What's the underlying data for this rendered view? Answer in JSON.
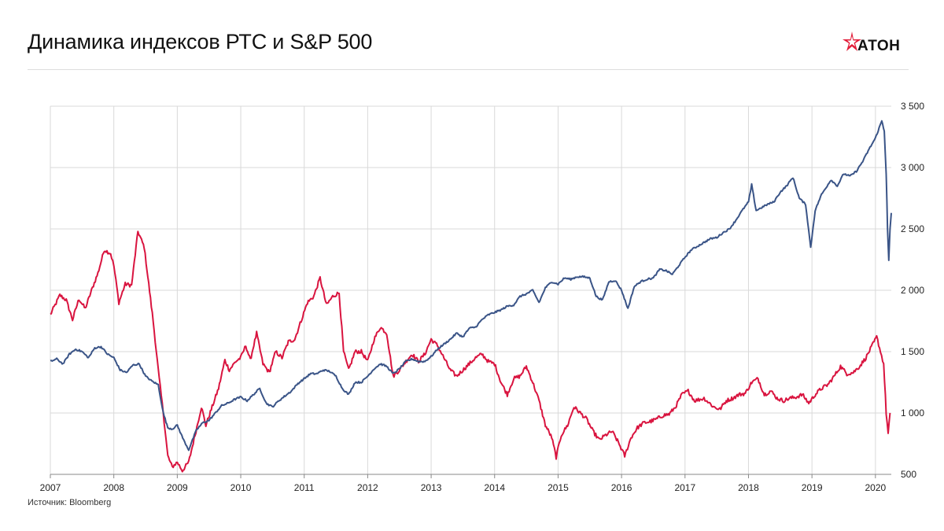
{
  "title": "Динамика индексов РТС и S&P 500",
  "logo": {
    "text": "АТОН",
    "accent": "#e21e3a"
  },
  "source": "Источник: Bloomberg",
  "colors": {
    "rts": "#d9143f",
    "sp500": "#3a5487",
    "grid": "#d9d9d9",
    "axis": "#888888"
  },
  "chart_data": {
    "type": "line",
    "title": "Динамика индексов РТС и S&P 500",
    "xlabel": "",
    "ylabel": "",
    "xlim": [
      2007.0,
      2020.25
    ],
    "ylim": [
      500,
      3500
    ],
    "x_ticks": [
      "2007",
      "2008",
      "2009",
      "2010",
      "2011",
      "2012",
      "2013",
      "2014",
      "2015",
      "2016",
      "2017",
      "2018",
      "2019",
      "2020"
    ],
    "x_tick_values": [
      2007,
      2008,
      2009,
      2010,
      2011,
      2012,
      2013,
      2014,
      2015,
      2016,
      2017,
      2018,
      2019,
      2020
    ],
    "y_ticks": [
      "500",
      "1 000",
      "1 500",
      "2 000",
      "2 500",
      "3 000",
      "3 500"
    ],
    "y_tick_values": [
      500,
      1000,
      1500,
      2000,
      2500,
      3000,
      3500
    ],
    "y_axis_position": "right",
    "grid": true,
    "series": [
      {
        "name": "РТС",
        "color": "#d9143f",
        "points": [
          [
            2007.0,
            1800
          ],
          [
            2007.15,
            1960
          ],
          [
            2007.25,
            1920
          ],
          [
            2007.35,
            1760
          ],
          [
            2007.45,
            1930
          ],
          [
            2007.55,
            1850
          ],
          [
            2007.65,
            2000
          ],
          [
            2007.75,
            2140
          ],
          [
            2007.85,
            2330
          ],
          [
            2007.95,
            2300
          ],
          [
            2008.0,
            2200
          ],
          [
            2008.08,
            1900
          ],
          [
            2008.18,
            2050
          ],
          [
            2008.28,
            2040
          ],
          [
            2008.38,
            2480
          ],
          [
            2008.48,
            2350
          ],
          [
            2008.55,
            2050
          ],
          [
            2008.62,
            1750
          ],
          [
            2008.7,
            1350
          ],
          [
            2008.78,
            1000
          ],
          [
            2008.85,
            650
          ],
          [
            2008.92,
            560
          ],
          [
            2009.0,
            600
          ],
          [
            2009.08,
            530
          ],
          [
            2009.18,
            600
          ],
          [
            2009.28,
            820
          ],
          [
            2009.38,
            1050
          ],
          [
            2009.45,
            900
          ],
          [
            2009.55,
            1050
          ],
          [
            2009.65,
            1200
          ],
          [
            2009.75,
            1430
          ],
          [
            2009.82,
            1350
          ],
          [
            2009.92,
            1420
          ],
          [
            2010.0,
            1450
          ],
          [
            2010.08,
            1550
          ],
          [
            2010.15,
            1430
          ],
          [
            2010.25,
            1650
          ],
          [
            2010.35,
            1400
          ],
          [
            2010.45,
            1330
          ],
          [
            2010.55,
            1500
          ],
          [
            2010.65,
            1450
          ],
          [
            2010.75,
            1580
          ],
          [
            2010.85,
            1600
          ],
          [
            2010.95,
            1750
          ],
          [
            2011.05,
            1900
          ],
          [
            2011.15,
            1950
          ],
          [
            2011.25,
            2100
          ],
          [
            2011.35,
            1880
          ],
          [
            2011.45,
            1950
          ],
          [
            2011.55,
            1980
          ],
          [
            2011.62,
            1500
          ],
          [
            2011.7,
            1350
          ],
          [
            2011.8,
            1500
          ],
          [
            2011.9,
            1500
          ],
          [
            2012.0,
            1420
          ],
          [
            2012.1,
            1600
          ],
          [
            2012.2,
            1700
          ],
          [
            2012.3,
            1650
          ],
          [
            2012.4,
            1300
          ],
          [
            2012.5,
            1350
          ],
          [
            2012.6,
            1420
          ],
          [
            2012.7,
            1480
          ],
          [
            2012.8,
            1420
          ],
          [
            2012.9,
            1480
          ],
          [
            2013.0,
            1600
          ],
          [
            2013.1,
            1550
          ],
          [
            2013.2,
            1450
          ],
          [
            2013.3,
            1350
          ],
          [
            2013.4,
            1300
          ],
          [
            2013.5,
            1350
          ],
          [
            2013.6,
            1400
          ],
          [
            2013.7,
            1450
          ],
          [
            2013.8,
            1480
          ],
          [
            2013.9,
            1420
          ],
          [
            2014.0,
            1400
          ],
          [
            2014.1,
            1250
          ],
          [
            2014.2,
            1150
          ],
          [
            2014.3,
            1280
          ],
          [
            2014.4,
            1300
          ],
          [
            2014.5,
            1380
          ],
          [
            2014.6,
            1250
          ],
          [
            2014.7,
            1100
          ],
          [
            2014.8,
            900
          ],
          [
            2014.9,
            800
          ],
          [
            2014.97,
            640
          ],
          [
            2015.05,
            820
          ],
          [
            2015.15,
            900
          ],
          [
            2015.25,
            1050
          ],
          [
            2015.35,
            1000
          ],
          [
            2015.45,
            950
          ],
          [
            2015.55,
            850
          ],
          [
            2015.65,
            780
          ],
          [
            2015.75,
            820
          ],
          [
            2015.85,
            850
          ],
          [
            2015.95,
            760
          ],
          [
            2016.05,
            650
          ],
          [
            2016.15,
            800
          ],
          [
            2016.25,
            880
          ],
          [
            2016.35,
            920
          ],
          [
            2016.45,
            930
          ],
          [
            2016.55,
            950
          ],
          [
            2016.65,
            980
          ],
          [
            2016.75,
            990
          ],
          [
            2016.85,
            1050
          ],
          [
            2016.95,
            1150
          ],
          [
            2017.05,
            1180
          ],
          [
            2017.15,
            1100
          ],
          [
            2017.3,
            1120
          ],
          [
            2017.45,
            1050
          ],
          [
            2017.55,
            1030
          ],
          [
            2017.65,
            1100
          ],
          [
            2017.75,
            1120
          ],
          [
            2017.85,
            1150
          ],
          [
            2017.95,
            1160
          ],
          [
            2018.05,
            1250
          ],
          [
            2018.15,
            1280
          ],
          [
            2018.25,
            1150
          ],
          [
            2018.35,
            1180
          ],
          [
            2018.45,
            1120
          ],
          [
            2018.55,
            1100
          ],
          [
            2018.65,
            1120
          ],
          [
            2018.75,
            1130
          ],
          [
            2018.85,
            1150
          ],
          [
            2018.95,
            1080
          ],
          [
            2019.05,
            1150
          ],
          [
            2019.15,
            1200
          ],
          [
            2019.25,
            1230
          ],
          [
            2019.35,
            1300
          ],
          [
            2019.45,
            1380
          ],
          [
            2019.55,
            1320
          ],
          [
            2019.65,
            1330
          ],
          [
            2019.75,
            1380
          ],
          [
            2019.85,
            1450
          ],
          [
            2019.95,
            1550
          ],
          [
            2020.02,
            1620
          ],
          [
            2020.08,
            1500
          ],
          [
            2020.13,
            1400
          ],
          [
            2020.17,
            1000
          ],
          [
            2020.2,
            830
          ],
          [
            2020.23,
            1000
          ]
        ]
      },
      {
        "name": "S&P 500",
        "color": "#3a5487",
        "points": [
          [
            2007.0,
            1420
          ],
          [
            2007.1,
            1440
          ],
          [
            2007.2,
            1400
          ],
          [
            2007.3,
            1480
          ],
          [
            2007.4,
            1520
          ],
          [
            2007.5,
            1500
          ],
          [
            2007.6,
            1450
          ],
          [
            2007.7,
            1530
          ],
          [
            2007.8,
            1540
          ],
          [
            2007.9,
            1480
          ],
          [
            2008.0,
            1450
          ],
          [
            2008.1,
            1350
          ],
          [
            2008.2,
            1330
          ],
          [
            2008.3,
            1390
          ],
          [
            2008.4,
            1400
          ],
          [
            2008.5,
            1300
          ],
          [
            2008.6,
            1260
          ],
          [
            2008.7,
            1230
          ],
          [
            2008.78,
            1000
          ],
          [
            2008.85,
            880
          ],
          [
            2008.92,
            870
          ],
          [
            2009.0,
            900
          ],
          [
            2009.1,
            780
          ],
          [
            2009.18,
            700
          ],
          [
            2009.3,
            860
          ],
          [
            2009.4,
            920
          ],
          [
            2009.5,
            940
          ],
          [
            2009.6,
            1000
          ],
          [
            2009.7,
            1060
          ],
          [
            2009.8,
            1080
          ],
          [
            2009.9,
            1110
          ],
          [
            2010.0,
            1130
          ],
          [
            2010.1,
            1100
          ],
          [
            2010.2,
            1150
          ],
          [
            2010.3,
            1200
          ],
          [
            2010.4,
            1080
          ],
          [
            2010.5,
            1050
          ],
          [
            2010.6,
            1100
          ],
          [
            2010.7,
            1140
          ],
          [
            2010.8,
            1180
          ],
          [
            2010.9,
            1240
          ],
          [
            2011.0,
            1280
          ],
          [
            2011.1,
            1320
          ],
          [
            2011.2,
            1320
          ],
          [
            2011.3,
            1350
          ],
          [
            2011.4,
            1340
          ],
          [
            2011.5,
            1300
          ],
          [
            2011.6,
            1200
          ],
          [
            2011.7,
            1150
          ],
          [
            2011.8,
            1250
          ],
          [
            2011.9,
            1250
          ],
          [
            2012.0,
            1300
          ],
          [
            2012.1,
            1360
          ],
          [
            2012.2,
            1400
          ],
          [
            2012.3,
            1380
          ],
          [
            2012.4,
            1320
          ],
          [
            2012.5,
            1360
          ],
          [
            2012.6,
            1420
          ],
          [
            2012.7,
            1440
          ],
          [
            2012.8,
            1420
          ],
          [
            2012.9,
            1420
          ],
          [
            2013.0,
            1460
          ],
          [
            2013.1,
            1520
          ],
          [
            2013.2,
            1560
          ],
          [
            2013.3,
            1600
          ],
          [
            2013.4,
            1650
          ],
          [
            2013.5,
            1620
          ],
          [
            2013.6,
            1690
          ],
          [
            2013.7,
            1700
          ],
          [
            2013.8,
            1760
          ],
          [
            2013.9,
            1800
          ],
          [
            2014.0,
            1820
          ],
          [
            2014.1,
            1840
          ],
          [
            2014.2,
            1870
          ],
          [
            2014.3,
            1880
          ],
          [
            2014.4,
            1950
          ],
          [
            2014.5,
            1970
          ],
          [
            2014.6,
            2000
          ],
          [
            2014.7,
            1900
          ],
          [
            2014.8,
            2020
          ],
          [
            2014.9,
            2070
          ],
          [
            2015.0,
            2050
          ],
          [
            2015.1,
            2100
          ],
          [
            2015.2,
            2090
          ],
          [
            2015.3,
            2110
          ],
          [
            2015.4,
            2110
          ],
          [
            2015.5,
            2100
          ],
          [
            2015.6,
            1950
          ],
          [
            2015.7,
            1920
          ],
          [
            2015.8,
            2070
          ],
          [
            2015.9,
            2080
          ],
          [
            2016.0,
            2000
          ],
          [
            2016.1,
            1850
          ],
          [
            2016.2,
            2030
          ],
          [
            2016.3,
            2070
          ],
          [
            2016.4,
            2090
          ],
          [
            2016.5,
            2100
          ],
          [
            2016.6,
            2170
          ],
          [
            2016.7,
            2160
          ],
          [
            2016.8,
            2130
          ],
          [
            2016.9,
            2200
          ],
          [
            2017.0,
            2270
          ],
          [
            2017.1,
            2330
          ],
          [
            2017.2,
            2360
          ],
          [
            2017.3,
            2390
          ],
          [
            2017.4,
            2420
          ],
          [
            2017.5,
            2430
          ],
          [
            2017.6,
            2470
          ],
          [
            2017.7,
            2500
          ],
          [
            2017.8,
            2570
          ],
          [
            2017.9,
            2650
          ],
          [
            2018.0,
            2720
          ],
          [
            2018.05,
            2860
          ],
          [
            2018.12,
            2650
          ],
          [
            2018.3,
            2700
          ],
          [
            2018.4,
            2720
          ],
          [
            2018.5,
            2800
          ],
          [
            2018.6,
            2850
          ],
          [
            2018.7,
            2920
          ],
          [
            2018.8,
            2750
          ],
          [
            2018.9,
            2700
          ],
          [
            2018.98,
            2350
          ],
          [
            2019.05,
            2650
          ],
          [
            2019.15,
            2780
          ],
          [
            2019.3,
            2900
          ],
          [
            2019.4,
            2850
          ],
          [
            2019.5,
            2950
          ],
          [
            2019.6,
            2930
          ],
          [
            2019.7,
            2970
          ],
          [
            2019.8,
            3050
          ],
          [
            2019.9,
            3150
          ],
          [
            2020.0,
            3240
          ],
          [
            2020.1,
            3380
          ],
          [
            2020.14,
            3300
          ],
          [
            2020.17,
            2950
          ],
          [
            2020.19,
            2500
          ],
          [
            2020.21,
            2240
          ],
          [
            2020.23,
            2500
          ],
          [
            2020.25,
            2630
          ]
        ]
      }
    ]
  }
}
